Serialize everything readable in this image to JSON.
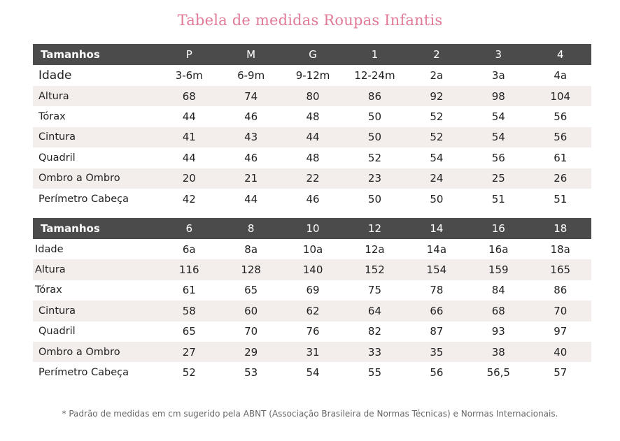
{
  "title": "Tabela de medidas Roupas Infantis",
  "table1": {
    "header_label": "Tamanhos",
    "sizes": [
      "P",
      "M",
      "G",
      "1",
      "2",
      "3",
      "4"
    ],
    "rows": [
      {
        "label": "Idade",
        "values": [
          "3-6m",
          "6-9m",
          "9-12m",
          "12-24m",
          "2a",
          "3a",
          "4a"
        ]
      },
      {
        "label": "Altura",
        "values": [
          "68",
          "74",
          "80",
          "86",
          "92",
          "98",
          "104"
        ]
      },
      {
        "label": "Tórax",
        "values": [
          "44",
          "46",
          "48",
          "50",
          "52",
          "54",
          "56"
        ]
      },
      {
        "label": "Cintura",
        "values": [
          "41",
          "43",
          "44",
          "50",
          "52",
          "54",
          "56"
        ]
      },
      {
        "label": "Quadril",
        "values": [
          "44",
          "46",
          "48",
          "52",
          "54",
          "56",
          "61"
        ]
      },
      {
        "label": "Ombro a Ombro",
        "values": [
          "20",
          "21",
          "22",
          "23",
          "24",
          "25",
          "26"
        ]
      },
      {
        "label": "Perímetro Cabeça",
        "values": [
          "42",
          "44",
          "46",
          "50",
          "50",
          "51",
          "51"
        ]
      }
    ]
  },
  "table2": {
    "header_label": "Tamanhos",
    "sizes": [
      "6",
      "8",
      "10",
      "12",
      "14",
      "16",
      "18"
    ],
    "rows": [
      {
        "label": "Idade",
        "values": [
          "6a",
          "8a",
          "10a",
          "12a",
          "14a",
          "16a",
          "18a"
        ]
      },
      {
        "label": "Altura",
        "values": [
          "116",
          "128",
          "140",
          "152",
          "154",
          "159",
          "165"
        ]
      },
      {
        "label": "Tórax",
        "values": [
          "61",
          "65",
          "69",
          "75",
          "78",
          "84",
          "86"
        ]
      },
      {
        "label": "Cintura",
        "values": [
          "58",
          "60",
          "62",
          "64",
          "66",
          "68",
          "70"
        ]
      },
      {
        "label": "Quadril",
        "values": [
          "65",
          "70",
          "76",
          "82",
          "87",
          "93",
          "97"
        ]
      },
      {
        "label": "Ombro a Ombro",
        "values": [
          "27",
          "29",
          "31",
          "33",
          "35",
          "38",
          "40"
        ]
      },
      {
        "label": "Perímetro Cabeça",
        "values": [
          "52",
          "53",
          "54",
          "55",
          "56",
          "56,5",
          "57"
        ]
      }
    ]
  },
  "footnote": "* Padrão de medidas em cm sugerido pela ABNT (Associação Brasileira de Normas Técnicas) e Normas Internacionais.",
  "colors": {
    "title": "#e07a96",
    "header_bg": "#4b4b4b",
    "shade_row": "#f3eeeb",
    "footnote": "#666666"
  }
}
